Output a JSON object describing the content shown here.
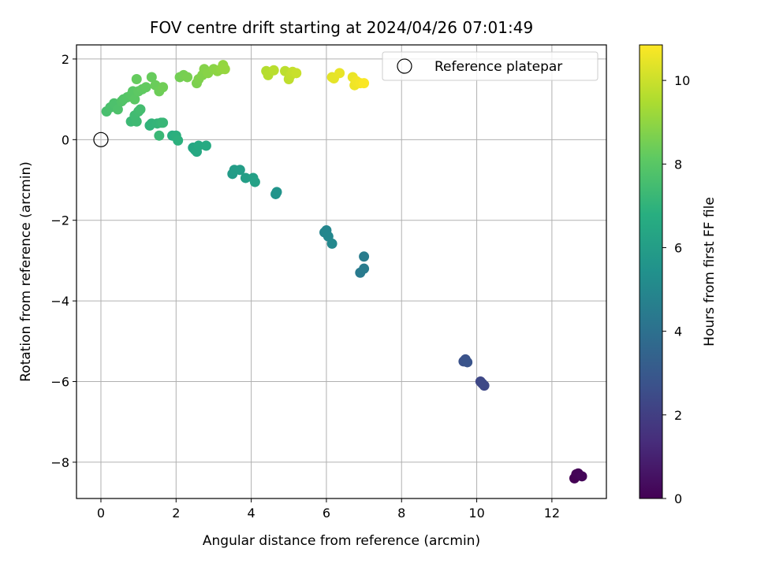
{
  "chart_data": {
    "type": "scatter",
    "title": "FOV centre drift starting at 2024/04/26 07:01:49",
    "xlabel": "Angular distance from reference (arcmin)",
    "ylabel": "Rotation from reference (arcmin)",
    "xlim": [
      -0.65,
      13.45
    ],
    "ylim": [
      -8.9,
      2.35
    ],
    "x_ticks": [
      0,
      2,
      4,
      6,
      8,
      10,
      12
    ],
    "y_ticks": [
      -8,
      -6,
      -4,
      -2,
      0,
      2
    ],
    "grid": true,
    "legend": {
      "placement": "top-right",
      "entries": [
        "Reference platepar"
      ]
    },
    "reference_point": {
      "name": "Reference platepar",
      "x": 0,
      "y": 0
    },
    "colorbar": {
      "label": "Hours from first FF file",
      "colormap": "viridis",
      "range": [
        0,
        10.85
      ],
      "ticks": [
        0,
        2,
        4,
        6,
        8,
        10
      ]
    },
    "series": [
      {
        "points": [
          {
            "x": 12.6,
            "y": -8.4,
            "h": 0.0
          },
          {
            "x": 12.65,
            "y": -8.3,
            "h": 0.05
          },
          {
            "x": 12.7,
            "y": -8.28,
            "h": 0.1
          },
          {
            "x": 12.8,
            "y": -8.35,
            "h": 0.15
          },
          {
            "x": 9.65,
            "y": -5.5,
            "h": 2.7
          },
          {
            "x": 9.7,
            "y": -5.45,
            "h": 2.75
          },
          {
            "x": 9.75,
            "y": -5.52,
            "h": 2.8
          },
          {
            "x": 10.1,
            "y": -6.0,
            "h": 2.3
          },
          {
            "x": 10.2,
            "y": -6.1,
            "h": 2.35
          },
          {
            "x": 10.15,
            "y": -6.05,
            "h": 2.4
          },
          {
            "x": 6.9,
            "y": -3.3,
            "h": 4.4
          },
          {
            "x": 7.0,
            "y": -3.2,
            "h": 4.45
          },
          {
            "x": 7.0,
            "y": -2.9,
            "h": 4.5
          },
          {
            "x": 5.95,
            "y": -2.3,
            "h": 4.9
          },
          {
            "x": 6.0,
            "y": -2.25,
            "h": 4.95
          },
          {
            "x": 6.05,
            "y": -2.4,
            "h": 5.0
          },
          {
            "x": 6.15,
            "y": -2.58,
            "h": 5.05
          },
          {
            "x": 4.65,
            "y": -1.35,
            "h": 5.5
          },
          {
            "x": 4.68,
            "y": -1.3,
            "h": 5.55
          },
          {
            "x": 3.5,
            "y": -0.85,
            "h": 5.9
          },
          {
            "x": 3.55,
            "y": -0.75,
            "h": 5.95
          },
          {
            "x": 3.7,
            "y": -0.75,
            "h": 6.0
          },
          {
            "x": 3.85,
            "y": -0.95,
            "h": 6.05
          },
          {
            "x": 4.05,
            "y": -0.95,
            "h": 6.1
          },
          {
            "x": 4.1,
            "y": -1.05,
            "h": 6.15
          },
          {
            "x": 2.45,
            "y": -0.2,
            "h": 6.4
          },
          {
            "x": 2.5,
            "y": -0.25,
            "h": 6.45
          },
          {
            "x": 2.55,
            "y": -0.3,
            "h": 6.5
          },
          {
            "x": 2.6,
            "y": -0.15,
            "h": 6.55
          },
          {
            "x": 2.8,
            "y": -0.15,
            "h": 6.6
          },
          {
            "x": 1.9,
            "y": 0.1,
            "h": 6.8
          },
          {
            "x": 2.0,
            "y": 0.1,
            "h": 6.85
          },
          {
            "x": 2.05,
            "y": -0.02,
            "h": 6.9
          },
          {
            "x": 1.3,
            "y": 0.35,
            "h": 7.0
          },
          {
            "x": 1.35,
            "y": 0.4,
            "h": 7.05
          },
          {
            "x": 1.5,
            "y": 0.4,
            "h": 7.1
          },
          {
            "x": 1.6,
            "y": 0.42,
            "h": 7.15
          },
          {
            "x": 1.65,
            "y": 0.42,
            "h": 7.2
          },
          {
            "x": 1.55,
            "y": 0.1,
            "h": 7.25
          },
          {
            "x": 0.8,
            "y": 0.45,
            "h": 7.3
          },
          {
            "x": 0.95,
            "y": 0.45,
            "h": 7.35
          },
          {
            "x": 0.9,
            "y": 0.6,
            "h": 7.4
          },
          {
            "x": 1.0,
            "y": 0.7,
            "h": 7.45
          },
          {
            "x": 1.05,
            "y": 0.75,
            "h": 7.5
          },
          {
            "x": 0.15,
            "y": 0.7,
            "h": 7.6
          },
          {
            "x": 0.25,
            "y": 0.8,
            "h": 7.65
          },
          {
            "x": 0.35,
            "y": 0.9,
            "h": 7.7
          },
          {
            "x": 0.45,
            "y": 0.75,
            "h": 7.75
          },
          {
            "x": 0.55,
            "y": 0.95,
            "h": 7.8
          },
          {
            "x": 0.6,
            "y": 1.0,
            "h": 7.85
          },
          {
            "x": 0.7,
            "y": 1.05,
            "h": 7.9
          },
          {
            "x": 0.8,
            "y": 1.1,
            "h": 7.95
          },
          {
            "x": 0.85,
            "y": 1.2,
            "h": 8.0
          },
          {
            "x": 0.9,
            "y": 1.0,
            "h": 8.05
          },
          {
            "x": 1.0,
            "y": 1.2,
            "h": 8.1
          },
          {
            "x": 1.1,
            "y": 1.25,
            "h": 8.15
          },
          {
            "x": 1.2,
            "y": 1.3,
            "h": 8.2
          },
          {
            "x": 0.95,
            "y": 1.5,
            "h": 8.25
          },
          {
            "x": 1.35,
            "y": 1.55,
            "h": 8.3
          },
          {
            "x": 1.45,
            "y": 1.35,
            "h": 8.35
          },
          {
            "x": 1.55,
            "y": 1.2,
            "h": 8.4
          },
          {
            "x": 1.65,
            "y": 1.3,
            "h": 8.45
          },
          {
            "x": 2.1,
            "y": 1.55,
            "h": 8.5
          },
          {
            "x": 2.2,
            "y": 1.6,
            "h": 8.55
          },
          {
            "x": 2.3,
            "y": 1.55,
            "h": 8.6
          },
          {
            "x": 2.55,
            "y": 1.4,
            "h": 8.65
          },
          {
            "x": 2.6,
            "y": 1.5,
            "h": 8.7
          },
          {
            "x": 2.7,
            "y": 1.6,
            "h": 8.75
          },
          {
            "x": 2.75,
            "y": 1.75,
            "h": 8.8
          },
          {
            "x": 2.85,
            "y": 1.65,
            "h": 8.85
          },
          {
            "x": 3.0,
            "y": 1.75,
            "h": 8.9
          },
          {
            "x": 3.1,
            "y": 1.7,
            "h": 8.95
          },
          {
            "x": 3.2,
            "y": 1.75,
            "h": 9.0
          },
          {
            "x": 3.25,
            "y": 1.85,
            "h": 9.05
          },
          {
            "x": 3.3,
            "y": 1.75,
            "h": 9.1
          },
          {
            "x": 4.4,
            "y": 1.7,
            "h": 9.6
          },
          {
            "x": 4.45,
            "y": 1.6,
            "h": 9.65
          },
          {
            "x": 4.6,
            "y": 1.72,
            "h": 9.7
          },
          {
            "x": 4.9,
            "y": 1.7,
            "h": 9.75
          },
          {
            "x": 5.0,
            "y": 1.5,
            "h": 9.8
          },
          {
            "x": 5.05,
            "y": 1.6,
            "h": 9.85
          },
          {
            "x": 5.1,
            "y": 1.68,
            "h": 9.9
          },
          {
            "x": 5.2,
            "y": 1.65,
            "h": 9.95
          },
          {
            "x": 6.15,
            "y": 1.55,
            "h": 10.4
          },
          {
            "x": 6.2,
            "y": 1.52,
            "h": 10.45
          },
          {
            "x": 6.35,
            "y": 1.65,
            "h": 10.5
          },
          {
            "x": 6.7,
            "y": 1.55,
            "h": 10.55
          },
          {
            "x": 6.75,
            "y": 1.35,
            "h": 10.6
          },
          {
            "x": 6.8,
            "y": 1.45,
            "h": 10.65
          },
          {
            "x": 6.9,
            "y": 1.4,
            "h": 10.7
          },
          {
            "x": 7.0,
            "y": 1.4,
            "h": 10.8
          }
        ]
      }
    ]
  }
}
